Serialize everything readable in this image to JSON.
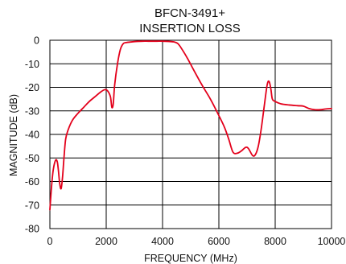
{
  "chart_data": {
    "type": "line",
    "title": "BFCN-3491+",
    "subtitle": "INSERTION LOSS",
    "xlabel": "FREQUENCY (MHz)",
    "ylabel": "MAGNITUDE (dB)",
    "xlim": [
      0,
      10000
    ],
    "ylim": [
      -80,
      0
    ],
    "xticks": [
      0,
      2000,
      4000,
      6000,
      8000,
      10000
    ],
    "yticks": [
      0,
      -10,
      -20,
      -30,
      -40,
      -50,
      -60,
      -70,
      -80
    ],
    "grid": true,
    "legend": "none",
    "series": [
      {
        "color": "#e3001b",
        "x": [
          0,
          60,
          120,
          200,
          260,
          300,
          350,
          400,
          450,
          500,
          560,
          650,
          800,
          1000,
          1200,
          1400,
          1600,
          1800,
          1950,
          2050,
          2150,
          2200,
          2250,
          2300,
          2400,
          2500,
          2600,
          2700,
          2900,
          3100,
          3300,
          3500,
          3800,
          4000,
          4200,
          4400,
          4550,
          4700,
          4900,
          5100,
          5400,
          5700,
          6000,
          6200,
          6350,
          6500,
          6650,
          6800,
          6950,
          7050,
          7200,
          7300,
          7400,
          7500,
          7600,
          7700,
          7750,
          7800,
          7850,
          7900,
          8000,
          8200,
          8500,
          8800,
          9000,
          9200,
          9400,
          9600,
          9800,
          10000
        ],
        "values": [
          -72,
          -62,
          -55,
          -51,
          -51.5,
          -55,
          -61,
          -63,
          -58,
          -50,
          -42,
          -38,
          -34,
          -31,
          -28.5,
          -26,
          -24,
          -22,
          -21,
          -21.5,
          -24,
          -28.5,
          -27,
          -19,
          -10,
          -4,
          -1.5,
          -1,
          -0.7,
          -0.5,
          -0.4,
          -0.4,
          -0.4,
          -0.4,
          -0.5,
          -0.7,
          -1.5,
          -4,
          -8,
          -12.5,
          -19,
          -25,
          -32,
          -37,
          -42,
          -47.5,
          -48,
          -47,
          -45.5,
          -46,
          -49,
          -48.5,
          -45,
          -38,
          -29,
          -20,
          -17.5,
          -18,
          -21,
          -25,
          -26,
          -27,
          -27.5,
          -27.8,
          -28,
          -29,
          -29.5,
          -29.5,
          -29.2,
          -29
        ]
      }
    ]
  }
}
